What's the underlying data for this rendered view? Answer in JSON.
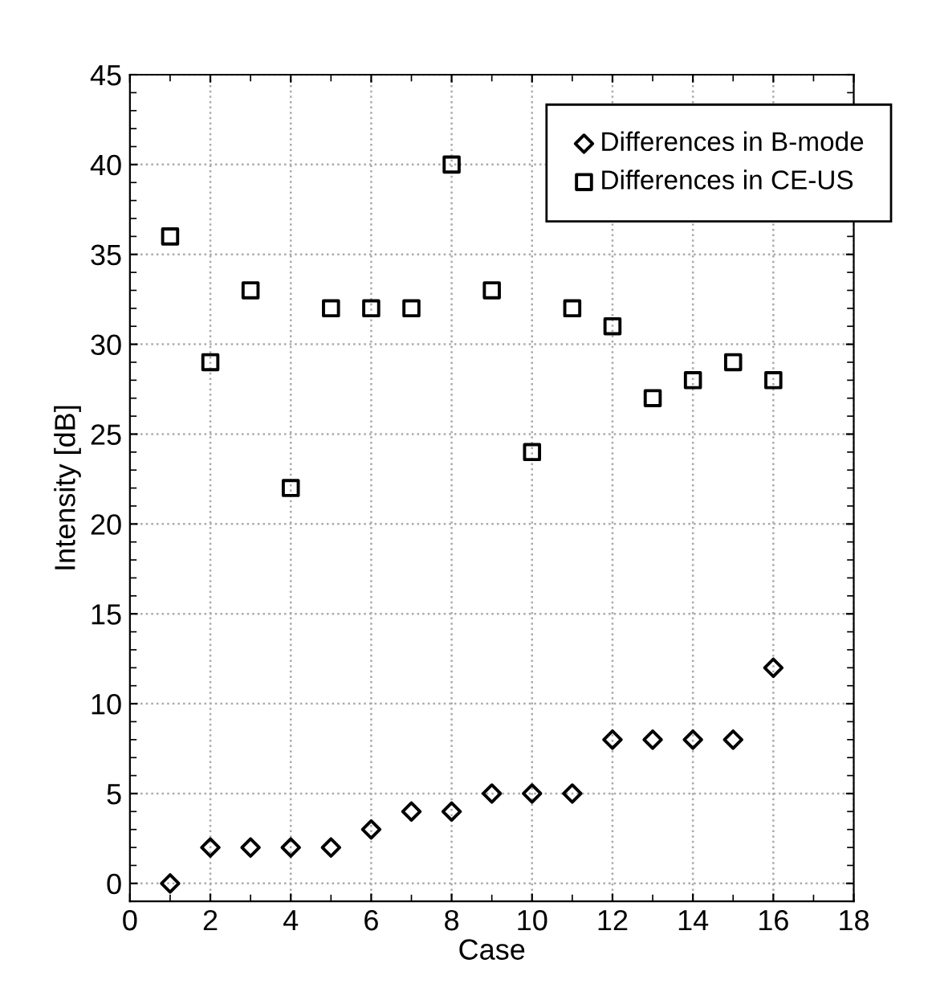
{
  "chart_data": {
    "type": "scatter",
    "xlabel": "Case",
    "ylabel": "Intensity [dB]",
    "x": [
      1,
      2,
      3,
      4,
      5,
      6,
      7,
      8,
      9,
      10,
      11,
      12,
      13,
      14,
      15,
      16
    ],
    "series": [
      {
        "name": "Differences in B-mode",
        "color": "#000000",
        "marker": "diamond",
        "values": [
          0,
          2,
          2,
          2,
          2,
          3,
          4,
          4,
          5,
          5,
          5,
          8,
          8,
          8,
          8,
          12
        ]
      },
      {
        "name": "Differences in CE-US",
        "color": "#000000",
        "marker": "square",
        "values": [
          36,
          29,
          33,
          22,
          32,
          32,
          32,
          40,
          33,
          24,
          32,
          31,
          27,
          28,
          29,
          28
        ]
      }
    ],
    "xlim": [
      0,
      18
    ],
    "xticks": [
      0,
      2,
      4,
      6,
      8,
      10,
      12,
      14,
      16,
      18
    ],
    "ylim": [
      -1,
      45
    ],
    "yticks": [
      0,
      5,
      10,
      15,
      20,
      25,
      30,
      35,
      40,
      45
    ],
    "grid": true,
    "legend": "top right"
  }
}
